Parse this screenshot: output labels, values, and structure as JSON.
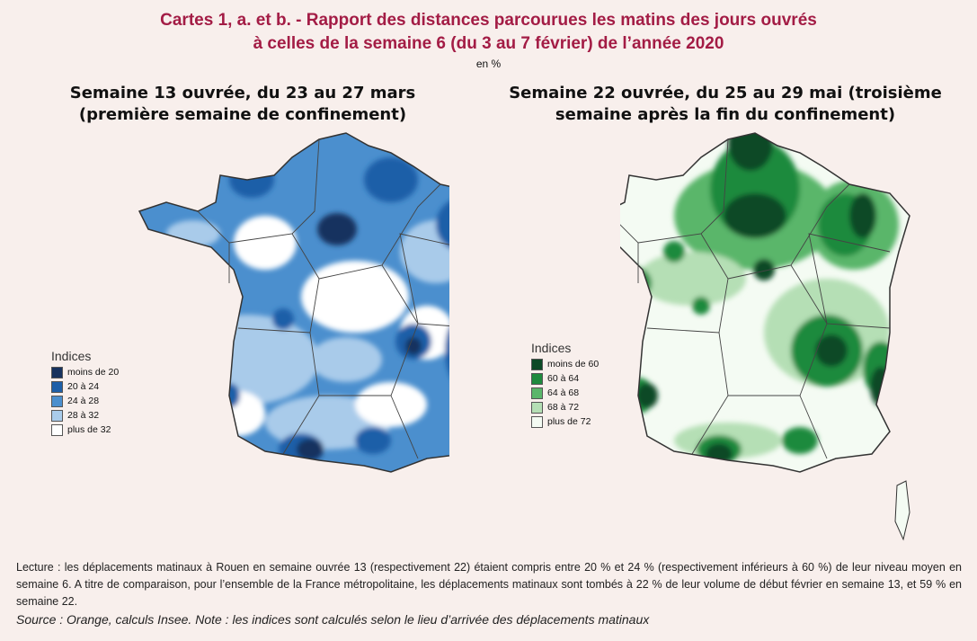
{
  "title_line1": "Cartes 1, a. et b. - Rapport des distances parcourues les matins des jours ouvrés",
  "title_line2": "à celles de la semaine 6 (du 3 au 7 février) de l’année 2020",
  "unit": "en %",
  "map_a": {
    "title_line1": "Semaine 13 ouvrée, du 23 au 27 mars",
    "title_line2": "(première semaine de confinement)",
    "legend_title": "Indices",
    "legend": [
      {
        "label": "moins de 20",
        "color": "#17325e"
      },
      {
        "label": "20 à 24",
        "color": "#1e5fa8"
      },
      {
        "label": "24 à 28",
        "color": "#4b8fce"
      },
      {
        "label": "28 à 32",
        "color": "#a9cbea"
      },
      {
        "label": "plus de 32",
        "color": "#ffffff"
      }
    ]
  },
  "map_b": {
    "title_line1": "Semaine 22 ouvrée, du 25 au 29 mai (troisième",
    "title_line2": "semaine après la fin du confinement)",
    "legend_title": "Indices",
    "legend": [
      {
        "label": "moins de 60",
        "color": "#0c4a26"
      },
      {
        "label": "60 à 64",
        "color": "#1f8a3e"
      },
      {
        "label": "64 à 68",
        "color": "#5ab66a"
      },
      {
        "label": "68 à 72",
        "color": "#b5dfb5"
      },
      {
        "label": "plus de 72",
        "color": "#f4fbf3"
      }
    ]
  },
  "reading_note": "Lecture : les déplacements matinaux à Rouen en semaine ouvrée 13 (respectivement 22) étaient compris entre 20 % et 24 % (respectivement inférieurs à 60 %) de leur niveau moyen en semaine 6. A titre de comparaison, pour l’ensemble de la France métropolitaine, les déplacements matinaux sont tombés à 22 % de leur volume de début février en semaine 13, et 59 % en semaine 22.",
  "source": "Source : Orange, calculs Insee. Note : les indices sont calculés selon le lieu d’arrivée des déplacements matinaux"
}
